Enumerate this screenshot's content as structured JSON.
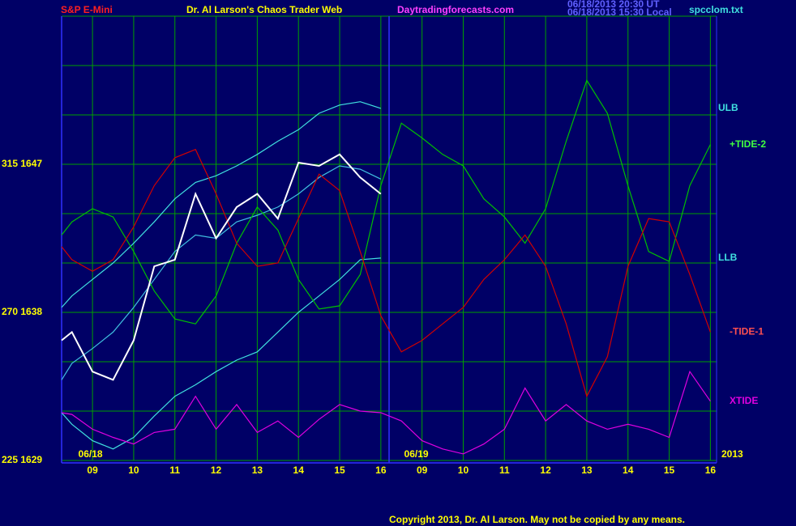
{
  "chart_data": {
    "type": "line",
    "title": "S&P E-Mini",
    "subtitle": "Dr. Al Larson's Chaos Trader Web",
    "site": "Daytradingforecasts.com",
    "timestamps": [
      "06/18/2013 20:30 UT",
      "06/18/2013 15:30 Local"
    ],
    "file": "spcclom.txt",
    "copyright": "Copyright 2013, Dr. Al Larson. May not be copied by any means.",
    "year": "2013",
    "date_labels": [
      {
        "label": "06/18",
        "x": 0.95
      },
      {
        "label": "06/19",
        "x": 8.86
      }
    ],
    "now_x": 8.2,
    "grid": true,
    "xlim": [
      0.25,
      16.15
    ],
    "xticks": [
      {
        "value": 1,
        "label": "09"
      },
      {
        "value": 2,
        "label": "10"
      },
      {
        "value": 3,
        "label": "11"
      },
      {
        "value": 4,
        "label": "12"
      },
      {
        "value": 5,
        "label": "13"
      },
      {
        "value": 6,
        "label": "14"
      },
      {
        "value": 7,
        "label": "15"
      },
      {
        "value": 8,
        "label": "16"
      },
      {
        "value": 9,
        "label": "09"
      },
      {
        "value": 10,
        "label": "10"
      },
      {
        "value": 11,
        "label": "11"
      },
      {
        "value": 12,
        "label": "12"
      },
      {
        "value": 13,
        "label": "13"
      },
      {
        "value": 14,
        "label": "14"
      },
      {
        "value": 15,
        "label": "15"
      },
      {
        "value": 16,
        "label": "16"
      }
    ],
    "ylim": [
      1629,
      1656
    ],
    "yticks": [
      {
        "value": 1629,
        "label": "225 1629"
      },
      {
        "value": 1632,
        "label": null
      },
      {
        "value": 1635,
        "label": null
      },
      {
        "value": 1638,
        "label": "270 1638"
      },
      {
        "value": 1641,
        "label": null
      },
      {
        "value": 1644,
        "label": null
      },
      {
        "value": 1647,
        "label": "315 1647"
      },
      {
        "value": 1650,
        "label": null
      },
      {
        "value": 1653,
        "label": null
      },
      {
        "value": 1656,
        "label": null
      }
    ],
    "x": [
      0.25,
      0.5,
      1,
      1.5,
      2,
      2.5,
      3,
      3.5,
      4,
      4.5,
      5,
      5.5,
      6,
      6.5,
      7,
      7.5,
      8,
      8.5,
      9,
      9.5,
      10,
      10.5,
      11,
      11.5,
      12,
      12.5,
      13,
      13.5,
      14,
      14.5,
      15,
      15.5,
      16
    ],
    "series": [
      {
        "name": "ULB",
        "color": "#40e0e0",
        "values": [
          1638.3,
          1639.0,
          1640.0,
          1641.0,
          1642.2,
          1643.5,
          1644.9,
          1645.9,
          1646.3,
          1646.9,
          1647.6,
          1648.4,
          1649.1,
          1650.1,
          1650.6,
          1650.8,
          1650.4,
          null,
          null,
          null,
          null,
          null,
          null,
          null,
          null,
          null,
          null,
          null,
          null,
          null,
          null,
          null,
          null
        ]
      },
      {
        "color": "#40c0e0",
        "values": [
          1633.9,
          1634.9,
          1635.8,
          1636.8,
          1638.3,
          1640.0,
          1641.7,
          1642.7,
          1642.5,
          1643.5,
          1643.9,
          1644.4,
          1645.2,
          1646.2,
          1646.9,
          1646.7,
          1646.1,
          null,
          null,
          null,
          null,
          null,
          null,
          null,
          null,
          null,
          null,
          null,
          null,
          null,
          null,
          null,
          null
        ]
      },
      {
        "name": "LLB",
        "color": "#40e0e0",
        "values": [
          1631.9,
          1631.2,
          1630.2,
          1629.7,
          1630.4,
          1631.7,
          1632.9,
          1633.6,
          1634.4,
          1635.1,
          1635.6,
          1636.8,
          1638.0,
          1639.0,
          1640.0,
          1641.2,
          1641.3,
          null,
          null,
          null,
          null,
          null,
          null,
          null,
          null,
          null,
          null,
          null,
          null,
          null,
          null,
          null,
          null
        ]
      },
      {
        "name": "+TIDE-2",
        "color": "#00c000",
        "values": [
          1642.7,
          1643.5,
          1644.3,
          1643.8,
          1641.7,
          1639.3,
          1637.6,
          1637.3,
          1639.0,
          1642.2,
          1644.4,
          1643.0,
          1640.0,
          1638.2,
          1638.4,
          1640.3,
          1645.7,
          1649.5,
          1648.6,
          1647.6,
          1646.9,
          1644.9,
          1643.8,
          1642.2,
          1644.3,
          1648.4,
          1652.1,
          1650.1,
          1645.7,
          1641.7,
          1641.1,
          1645.7,
          1648.2
        ]
      },
      {
        "name": "-TIDE-1",
        "color": "#d00000",
        "values": [
          1642.0,
          1641.2,
          1640.5,
          1641.2,
          1643.2,
          1645.7,
          1647.4,
          1647.9,
          1645.2,
          1642.2,
          1640.8,
          1641.0,
          1643.7,
          1646.4,
          1645.4,
          1641.7,
          1637.8,
          1635.6,
          1636.3,
          1637.3,
          1638.3,
          1640.0,
          1641.2,
          1642.7,
          1640.8,
          1637.3,
          1632.9,
          1635.3,
          1640.8,
          1643.7,
          1643.5,
          1640.3,
          1636.8
        ]
      },
      {
        "name": "XTIDE",
        "color": "#e000e0",
        "values": [
          1631.9,
          1631.8,
          1630.9,
          1630.4,
          1630.0,
          1630.7,
          1630.9,
          1632.9,
          1630.9,
          1632.4,
          1630.7,
          1631.4,
          1630.4,
          1631.5,
          1632.4,
          1632.0,
          1631.9,
          1631.4,
          1630.2,
          1629.7,
          1629.4,
          1630.0,
          1630.9,
          1633.4,
          1631.4,
          1632.4,
          1631.4,
          1630.9,
          1631.2,
          1630.9,
          1630.4,
          1634.4,
          1632.6
        ]
      },
      {
        "color": "#ffffff",
        "values": [
          1636.3,
          1636.8,
          1634.4,
          1633.9,
          1636.3,
          1640.8,
          1641.2,
          1645.2,
          1642.5,
          1644.4,
          1645.2,
          1643.7,
          1647.1,
          1646.9,
          1647.6,
          1646.2,
          1645.2,
          null,
          null,
          null,
          null,
          null,
          null,
          null,
          null,
          null,
          null,
          null,
          null,
          null,
          null,
          null,
          null
        ]
      }
    ]
  }
}
